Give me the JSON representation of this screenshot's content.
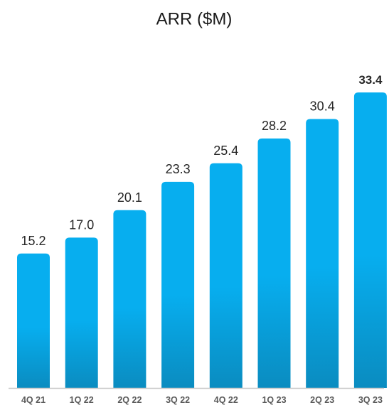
{
  "chart_data": {
    "type": "bar",
    "title": "ARR ($M)",
    "xlabel": "",
    "ylabel": "",
    "categories": [
      "4Q 21",
      "1Q 22",
      "2Q 22",
      "3Q 22",
      "4Q 22",
      "1Q 23",
      "2Q 23",
      "3Q 23"
    ],
    "values": [
      15.2,
      17.0,
      20.1,
      23.3,
      25.4,
      28.2,
      30.4,
      33.4
    ],
    "value_labels": [
      "15.2",
      "17.0",
      "20.1",
      "23.3",
      "25.4",
      "28.2",
      "30.4",
      "33.4"
    ],
    "emphasized_index": 7,
    "ylim": [
      0,
      35
    ],
    "grid": false,
    "legend": "none",
    "colors": {
      "bar_top": "#07AEEF",
      "bar_bottom": "#0A8CC0",
      "baseline": "#C8C8C8"
    }
  }
}
